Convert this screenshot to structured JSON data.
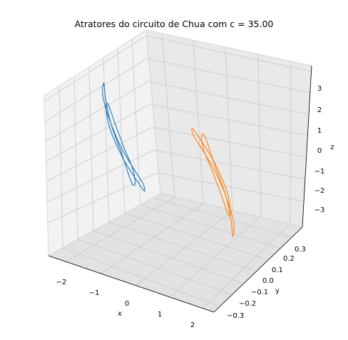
{
  "chart_data": {
    "type": "line",
    "projection": "3d",
    "title": "Atratores do circuito de Chua com c = 35.00",
    "xlabel": "x",
    "ylabel": "y",
    "zlabel": "z",
    "x_ticks": [
      "−2",
      "−1",
      "0",
      "1",
      "2"
    ],
    "y_ticks": [
      "−0.3",
      "−0.2",
      "−0.1",
      "0.0",
      "0.1",
      "0.2",
      "0.3"
    ],
    "z_ticks": [
      "−3",
      "−2",
      "−1",
      "0",
      "1",
      "2",
      "3"
    ],
    "xlim": [
      -2.5,
      2.5
    ],
    "ylim": [
      -0.38,
      0.38
    ],
    "zlim": [
      -3.8,
      3.8
    ],
    "grid": true,
    "series": [
      {
        "color": "#1f77b4",
        "x": [
          -1.8,
          -1.6,
          -1.3,
          -1.1,
          -1.05,
          -1.15,
          -1.4,
          -1.7,
          -1.95,
          -2.0,
          -1.8,
          -1.55,
          -1.3,
          -1.15,
          -1.25,
          -1.55,
          -1.85,
          -2.05,
          -2.1,
          -1.95,
          -1.8
        ],
        "y": [
          -0.05,
          -0.1,
          -0.12,
          -0.1,
          -0.04,
          0.03,
          0.08,
          0.1,
          0.06,
          0.0,
          -0.05,
          -0.08,
          -0.09,
          -0.07,
          -0.01,
          0.05,
          0.08,
          0.07,
          0.03,
          -0.02,
          -0.05
        ],
        "z": [
          3.2,
          2.8,
          1.8,
          0.6,
          -0.6,
          -1.6,
          -2.2,
          -2.0,
          -0.8,
          0.8,
          2.0,
          2.4,
          1.6,
          0.4,
          -0.8,
          -1.8,
          -1.9,
          -0.6,
          0.8,
          2.2,
          3.2
        ]
      },
      {
        "color": "#ff7f0e",
        "x": [
          1.8,
          1.6,
          1.3,
          1.1,
          1.05,
          1.15,
          1.4,
          1.7,
          1.95,
          2.0,
          1.8,
          1.55,
          1.3,
          1.15,
          1.25,
          1.55,
          1.85,
          2.05,
          2.1,
          1.95,
          1.8
        ],
        "y": [
          0.05,
          0.1,
          0.12,
          0.1,
          0.04,
          -0.03,
          -0.08,
          -0.1,
          -0.06,
          0.0,
          0.05,
          0.08,
          0.09,
          0.07,
          0.01,
          -0.05,
          -0.08,
          -0.07,
          -0.03,
          0.02,
          0.05
        ],
        "z": [
          -3.2,
          -2.8,
          -1.8,
          -0.6,
          0.6,
          1.6,
          2.2,
          2.0,
          0.8,
          -0.8,
          -2.0,
          -2.4,
          -1.6,
          -0.4,
          0.8,
          1.8,
          1.9,
          0.6,
          -0.8,
          -2.2,
          -3.2
        ]
      }
    ]
  }
}
